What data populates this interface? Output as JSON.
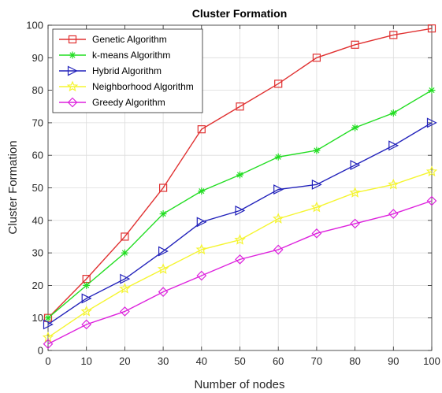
{
  "chart_data": {
    "type": "line",
    "title": "Cluster Formation",
    "xlabel": "Number of nodes",
    "ylabel": "Cluster Formation",
    "xlim": [
      0,
      100
    ],
    "ylim": [
      0,
      100
    ],
    "x_ticks": [
      0,
      10,
      20,
      30,
      40,
      50,
      60,
      70,
      80,
      90,
      100
    ],
    "y_ticks": [
      0,
      10,
      20,
      30,
      40,
      50,
      60,
      70,
      80,
      90,
      100
    ],
    "grid": true,
    "legend_position": "top-left",
    "x": [
      0,
      10,
      20,
      30,
      40,
      50,
      60,
      70,
      80,
      90,
      100
    ],
    "series": [
      {
        "name": "Genetic Algorithm",
        "color": "#e03030",
        "marker": "square",
        "values": [
          10,
          22,
          35,
          50,
          68,
          75,
          82,
          90,
          94,
          97,
          99
        ]
      },
      {
        "name": "k-means Algorithm",
        "color": "#22dd22",
        "marker": "asterisk",
        "values": [
          10,
          20,
          30,
          42,
          49,
          54,
          59.5,
          61.5,
          68.5,
          73,
          80
        ]
      },
      {
        "name": "Hybrid Algorithm",
        "color": "#2222bb",
        "marker": "triangle-right",
        "values": [
          8,
          16,
          22,
          30.5,
          39.5,
          43,
          49.5,
          51,
          57,
          63,
          70
        ]
      },
      {
        "name": "Neighborhood Algorithm",
        "color": "#f5f530",
        "marker": "star",
        "values": [
          4,
          12,
          19,
          25,
          31,
          34,
          40.5,
          44,
          48.5,
          51,
          55
        ]
      },
      {
        "name": "Greedy Algorithm",
        "color": "#dd22dd",
        "marker": "diamond",
        "values": [
          2,
          8,
          12,
          18,
          23,
          28,
          31,
          36,
          39,
          42,
          46
        ]
      }
    ]
  }
}
